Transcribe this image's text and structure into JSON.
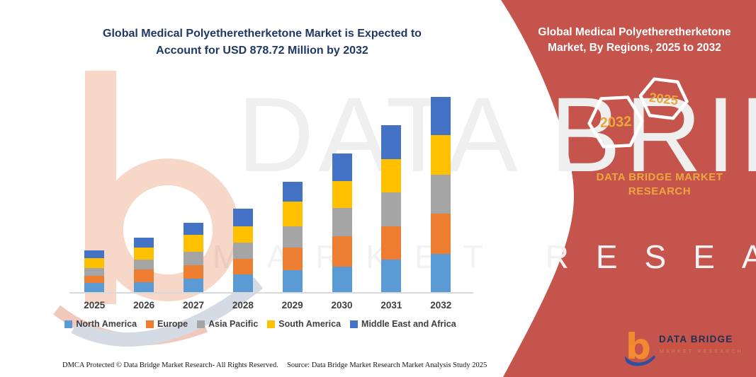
{
  "chart": {
    "title_line1": "Global Medical Polyetheretherketone Market is Expected to",
    "title_line2": "Account for USD 878.72 Million by 2032"
  },
  "chart_data": {
    "type": "bar",
    "stacked": true,
    "title": "Global Medical Polyetheretherketone Market is Expected to Account for USD 878.72 Million by 2032",
    "units": "USD Million",
    "categories": [
      "2025",
      "2026",
      "2027",
      "2028",
      "2029",
      "2030",
      "2031",
      "2032"
    ],
    "series": [
      {
        "name": "North America",
        "color": "#5B9BD5",
        "values": [
          43,
          49,
          62,
          81,
          100,
          118,
          150,
          174
        ]
      },
      {
        "name": "Europe",
        "color": "#ED7D31",
        "values": [
          34,
          55,
          61,
          71,
          103,
          137,
          148,
          180
        ]
      },
      {
        "name": "Asia Pacific",
        "color": "#A5A5A5",
        "values": [
          34,
          44,
          60,
          74,
          95,
          127,
          154,
          177
        ]
      },
      {
        "name": "South America",
        "color": "#FFC000",
        "values": [
          45,
          54,
          77,
          72,
          112,
          120,
          148,
          176
        ]
      },
      {
        "name": "Middle East and Africa",
        "color": "#4472C4",
        "values": [
          35,
          47,
          55,
          79,
          88,
          124,
          152,
          171.72
        ]
      }
    ],
    "totals_note": "2032 total = 878.72 USD Million (from title); other totals estimated from bar heights",
    "xlabel": "",
    "ylabel": "",
    "ylim": [
      0,
      900
    ],
    "grid": false,
    "legend_position": "bottom",
    "axis_line_color": "#D9D9D9"
  },
  "panel": {
    "title_line1": "Global Medical Polyetheretherketone",
    "title_line2": "Market, By Regions, 2025 to 2032",
    "hexagons": [
      {
        "label": "2032"
      },
      {
        "label": "2025"
      }
    ],
    "brand_line1": "DATA BRIDGE MARKET",
    "brand_line2": "RESEARCH",
    "background_color": "#C4544C",
    "accent_text_color": "#EDA63E"
  },
  "logo": {
    "name": "DATA BRIDGE",
    "subtitle": "MARKET RESEARCH",
    "orange": "#F28B2F",
    "blue": "#2E4E9E"
  },
  "watermark": {
    "text_primary": "DATA BRIDGE",
    "text_secondary": "MARKET RESEARCH"
  },
  "footer": {
    "left": "DMCA Protected © Data Bridge Market Research-  All Rights Reserved.",
    "source": "Source: Data Bridge Market Research  Market Analysis Study 2025"
  }
}
